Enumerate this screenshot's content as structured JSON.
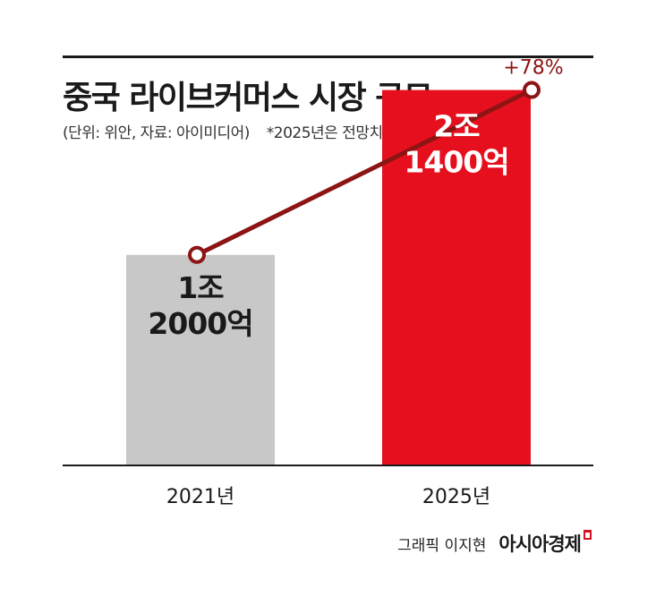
{
  "header": {
    "title": "중국 라이브커머스 시장 규모",
    "subtitle": "(단위: 위안, 자료: 아이미디어)",
    "note": "*2025년은 전망치"
  },
  "chart_data": {
    "type": "bar",
    "categories": [
      "2021년",
      "2025년"
    ],
    "values": [
      12000,
      21400
    ],
    "value_labels": [
      [
        "1조",
        "2000억"
      ],
      [
        "2조",
        "1400억"
      ]
    ],
    "unit": "억 위안",
    "ylim": [
      0,
      25000
    ],
    "bar_colors": [
      "#c8c8c8",
      "#e60f1e"
    ],
    "trend_line_color": "#8c1414",
    "growth_label": "+78%",
    "grid": false
  },
  "credit": {
    "author": "그래픽 이지현",
    "brand": "아시아경제"
  }
}
